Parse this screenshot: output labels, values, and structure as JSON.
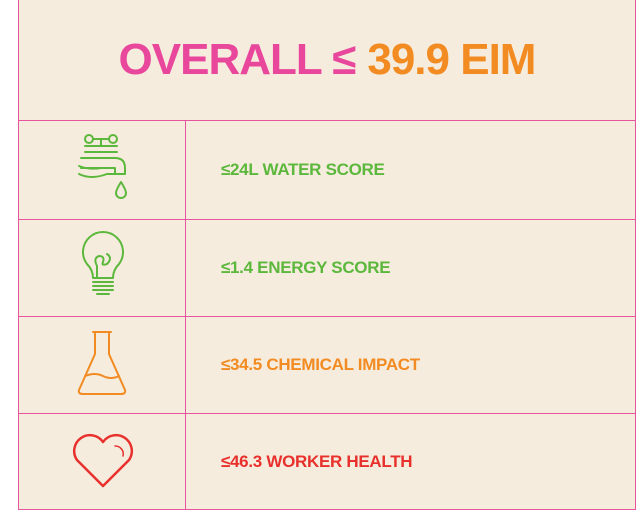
{
  "title": {
    "label": "OVERALL ≤",
    "value": "39.9 EIM"
  },
  "rows": [
    {
      "text": "≤24L WATER SCORE"
    },
    {
      "text": "≤1.4 ENERGY SCORE"
    },
    {
      "text": "≤34.5 CHEMICAL IMPACT"
    },
    {
      "text": "≤46.3 WORKER HEALTH"
    }
  ]
}
